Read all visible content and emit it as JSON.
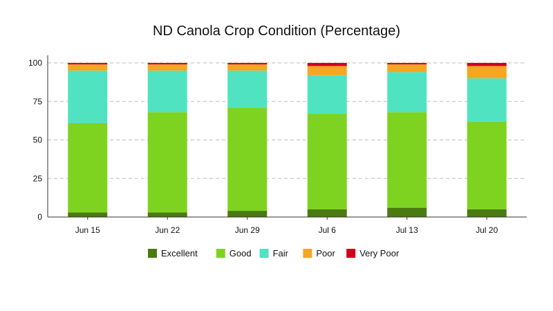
{
  "chart_data": {
    "type": "bar",
    "stacked": true,
    "title": "ND Canola Crop Condition (Percentage)",
    "xlabel": "",
    "ylabel": "",
    "categories": [
      "Jun 15",
      "Jun 22",
      "Jun 29",
      "Jul 6",
      "Jul 13",
      "Jul 20"
    ],
    "ylim": [
      0,
      100
    ],
    "yticks": [
      0,
      25,
      50,
      75,
      100
    ],
    "grid": "horizontal-dashed",
    "legend_position": "bottom",
    "series": [
      {
        "name": "Excellent",
        "color": "#4a7a10",
        "values": [
          3,
          3,
          4,
          5,
          6,
          5
        ]
      },
      {
        "name": "Good",
        "color": "#7ed321",
        "values": [
          58,
          65,
          67,
          62,
          62,
          57
        ]
      },
      {
        "name": "Fair",
        "color": "#50e3c2",
        "values": [
          34,
          27,
          24,
          25,
          26,
          28
        ]
      },
      {
        "name": "Poor",
        "color": "#f5a623",
        "values": [
          4,
          4,
          4,
          6,
          5,
          8
        ]
      },
      {
        "name": "Very Poor",
        "color": "#d0021b",
        "values": [
          1,
          1,
          1,
          2,
          1,
          2
        ]
      }
    ]
  }
}
